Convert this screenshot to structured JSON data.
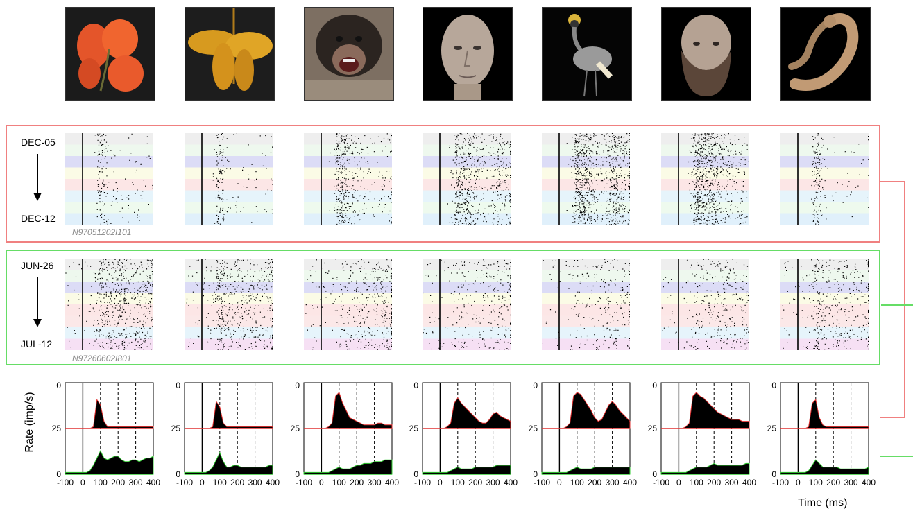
{
  "stimuli": [
    {
      "name": "flower-icon"
    },
    {
      "name": "flower-cluster-icon"
    },
    {
      "name": "chimpanzee-icon"
    },
    {
      "name": "face-icon"
    },
    {
      "name": "crane-bird-icon"
    },
    {
      "name": "bearded-face-icon"
    },
    {
      "name": "lizard-icon"
    }
  ],
  "groups": [
    {
      "key": "red",
      "color": "#f08080",
      "start_label": "DEC-05",
      "end_label": "DEC-12",
      "unit_id": "N97051202I101",
      "bands": [
        "#eeeeee",
        "#eef8ee",
        "#dcdcf6",
        "#fbfbe6",
        "#fce6e6",
        "#e6f4fb",
        "#eefaee",
        "#e0f0fb"
      ]
    },
    {
      "key": "green",
      "color": "#66dd66",
      "start_label": "JUN-26",
      "end_label": "JUL-12",
      "unit_id": "N97260602I801",
      "bands": [
        "#eeeeee",
        "#eef8ee",
        "#dcdcf6",
        "#fbfbe6",
        "#fce6e6",
        "#fbe8e8",
        "#e6f4fb",
        "#f6e0f4"
      ]
    }
  ],
  "chart_data": {
    "type": "area",
    "xlabel": "Time (ms)",
    "ylabel": "Rate (imp/s)",
    "xlim": [
      -100,
      400
    ],
    "x_ticks": [
      "-100",
      "0",
      "100",
      "200",
      "300",
      "400"
    ],
    "y_ticks_top": "0",
    "y_ticks_mid": "25",
    "y_ticks_bottom": "0",
    "dashed_lines_ms": [
      100,
      200,
      300
    ],
    "x": [
      -100,
      -80,
      -60,
      -40,
      -20,
      0,
      20,
      40,
      60,
      80,
      100,
      120,
      140,
      160,
      180,
      200,
      220,
      240,
      260,
      280,
      300,
      320,
      340,
      360,
      380,
      400
    ],
    "series": [
      {
        "name": "red",
        "panels": [
          [
            0,
            0,
            0,
            0,
            0,
            0,
            0,
            0,
            1,
            16,
            13,
            4,
            1,
            1,
            1,
            1,
            1,
            1,
            1,
            1,
            1,
            1,
            1,
            1,
            1,
            1
          ],
          [
            0,
            0,
            0,
            0,
            0,
            0,
            0,
            0,
            1,
            15,
            12,
            3,
            1,
            1,
            1,
            1,
            1,
            1,
            1,
            1,
            1,
            1,
            1,
            1,
            1,
            1
          ],
          [
            0,
            0,
            0,
            0,
            0,
            0,
            0,
            1,
            3,
            18,
            20,
            14,
            10,
            6,
            5,
            4,
            3,
            2,
            2,
            2,
            2,
            3,
            3,
            2,
            2,
            2
          ],
          [
            0,
            0,
            0,
            0,
            0,
            0,
            0,
            1,
            3,
            14,
            17,
            14,
            12,
            10,
            8,
            6,
            4,
            3,
            3,
            5,
            8,
            9,
            7,
            6,
            5,
            4
          ],
          [
            0,
            0,
            0,
            0,
            0,
            0,
            0,
            1,
            3,
            18,
            20,
            19,
            16,
            13,
            10,
            6,
            4,
            5,
            9,
            13,
            15,
            13,
            10,
            8,
            6,
            4
          ],
          [
            0,
            0,
            0,
            0,
            0,
            0,
            0,
            1,
            3,
            18,
            20,
            18,
            17,
            15,
            13,
            11,
            9,
            8,
            7,
            6,
            5,
            5,
            5,
            4,
            4,
            4
          ],
          [
            0,
            0,
            0,
            0,
            0,
            0,
            0,
            0,
            1,
            14,
            16,
            6,
            2,
            1,
            1,
            1,
            1,
            1,
            1,
            1,
            1,
            1,
            1,
            1,
            1,
            1
          ]
        ]
      },
      {
        "name": "green",
        "panels": [
          [
            1,
            1,
            1,
            1,
            1,
            1,
            1,
            2,
            5,
            9,
            13,
            9,
            8,
            9,
            10,
            10,
            8,
            7,
            7,
            8,
            8,
            7,
            8,
            9,
            9,
            10
          ],
          [
            1,
            1,
            1,
            1,
            1,
            1,
            1,
            2,
            4,
            8,
            12,
            7,
            4,
            4,
            5,
            5,
            4,
            4,
            4,
            4,
            4,
            4,
            4,
            4,
            5,
            5
          ],
          [
            1,
            1,
            1,
            1,
            1,
            1,
            1,
            1,
            2,
            3,
            4,
            3,
            3,
            3,
            4,
            5,
            5,
            6,
            6,
            6,
            7,
            7,
            7,
            8,
            8,
            8
          ],
          [
            1,
            1,
            1,
            1,
            1,
            1,
            1,
            1,
            2,
            3,
            4,
            3,
            3,
            3,
            3,
            4,
            4,
            4,
            4,
            4,
            4,
            5,
            5,
            5,
            5,
            5
          ],
          [
            1,
            1,
            1,
            1,
            1,
            1,
            1,
            1,
            2,
            3,
            4,
            3,
            3,
            3,
            3,
            4,
            4,
            4,
            4,
            4,
            4,
            4,
            4,
            4,
            4,
            4
          ],
          [
            1,
            1,
            1,
            1,
            1,
            1,
            1,
            1,
            2,
            3,
            4,
            4,
            4,
            4,
            5,
            6,
            5,
            5,
            5,
            5,
            5,
            5,
            5,
            5,
            6,
            6
          ],
          [
            1,
            1,
            1,
            1,
            1,
            1,
            1,
            1,
            2,
            5,
            8,
            6,
            4,
            4,
            4,
            4,
            4,
            3,
            3,
            3,
            3,
            3,
            3,
            3,
            3,
            4
          ]
        ]
      }
    ]
  }
}
